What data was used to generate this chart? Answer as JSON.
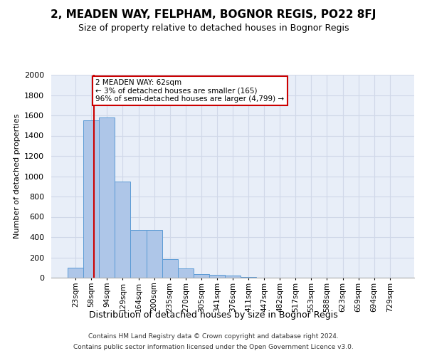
{
  "title": "2, MEADEN WAY, FELPHAM, BOGNOR REGIS, PO22 8FJ",
  "subtitle": "Size of property relative to detached houses in Bognor Regis",
  "xlabel": "Distribution of detached houses by size in Bognor Regis",
  "ylabel": "Number of detached properties",
  "categories": [
    "23sqm",
    "58sqm",
    "94sqm",
    "129sqm",
    "164sqm",
    "200sqm",
    "235sqm",
    "270sqm",
    "305sqm",
    "341sqm",
    "376sqm",
    "411sqm",
    "447sqm",
    "482sqm",
    "517sqm",
    "553sqm",
    "588sqm",
    "623sqm",
    "659sqm",
    "694sqm",
    "729sqm"
  ],
  "values": [
    100,
    1550,
    1580,
    950,
    470,
    470,
    185,
    90,
    35,
    30,
    20,
    8,
    2,
    1,
    1,
    1,
    0,
    0,
    0,
    0,
    0
  ],
  "bar_color": "#aec6e8",
  "bar_edge_color": "#5b9bd5",
  "grid_color": "#d0d8e8",
  "background_color": "#e8eef8",
  "vline_x": 1.18,
  "vline_color": "#cc0000",
  "annotation_text": "2 MEADEN WAY: 62sqm\n← 3% of detached houses are smaller (165)\n96% of semi-detached houses are larger (4,799) →",
  "annotation_box_color": "#ffffff",
  "annotation_box_edge": "#cc0000",
  "ylim": [
    0,
    2000
  ],
  "yticks": [
    0,
    200,
    400,
    600,
    800,
    1000,
    1200,
    1400,
    1600,
    1800,
    2000
  ],
  "footer1": "Contains HM Land Registry data © Crown copyright and database right 2024.",
  "footer2": "Contains public sector information licensed under the Open Government Licence v3.0."
}
